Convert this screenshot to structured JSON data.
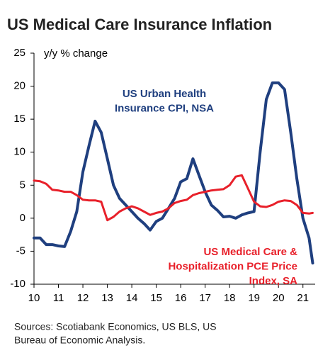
{
  "chart_data": {
    "type": "line",
    "title": "US Medical Care Insurance Inflation",
    "y_label": "y/y % change",
    "x": [
      10,
      10.25,
      10.5,
      10.75,
      11,
      11.25,
      11.5,
      11.75,
      12,
      12.25,
      12.5,
      12.75,
      13,
      13.25,
      13.5,
      13.75,
      14,
      14.25,
      14.5,
      14.75,
      15,
      15.25,
      15.5,
      15.75,
      16,
      16.25,
      16.5,
      16.75,
      17,
      17.25,
      17.5,
      17.75,
      18,
      18.25,
      18.5,
      18.75,
      19,
      19.25,
      19.5,
      19.75,
      20,
      20.25,
      20.5,
      20.75,
      21,
      21.25,
      21.4
    ],
    "series": [
      {
        "name": [
          "US Urban Health",
          "Insurance CPI, NSA"
        ],
        "color": "#1f3f7f",
        "values": [
          -3,
          -3,
          -4,
          -4,
          -4.2,
          -4.3,
          -2,
          1,
          7,
          11,
          14.7,
          13,
          9,
          5,
          3,
          2,
          1,
          0,
          -0.8,
          -1.8,
          -0.5,
          0,
          1.5,
          3,
          5.5,
          6,
          9,
          6.5,
          4,
          2,
          1.2,
          0.2,
          0.3,
          0,
          0.5,
          0.8,
          1,
          10,
          18,
          20.5,
          20.5,
          19.5,
          13,
          6,
          0,
          -3,
          -6.8
        ]
      },
      {
        "name": [
          "US Medical Care &",
          "Hospitalization PCE Price",
          "Index, SA"
        ],
        "color": "#e8202a",
        "values": [
          5.7,
          5.6,
          5.2,
          4.3,
          4.2,
          4,
          4,
          3.5,
          2.8,
          2.7,
          2.7,
          2.5,
          -0.3,
          0.2,
          1,
          1.5,
          1.8,
          1.5,
          1,
          0.5,
          0.8,
          1,
          1.5,
          2.3,
          2.6,
          2.8,
          3.5,
          3.8,
          4,
          4.2,
          4.3,
          4.4,
          5,
          6.3,
          6.5,
          4.5,
          2.5,
          1.8,
          1.7,
          2,
          2.5,
          2.7,
          2.6,
          2,
          0.8,
          0.7,
          0.8
        ]
      }
    ],
    "xlim": [
      10,
      21.5
    ],
    "xticks": [
      10,
      11,
      12,
      13,
      14,
      15,
      16,
      17,
      18,
      19,
      20,
      21
    ],
    "ylim": [
      -10,
      25
    ],
    "yticks": [
      -10,
      -5,
      0,
      5,
      10,
      15,
      20,
      25
    ],
    "source": [
      "Sources: Scotiabank Economics, US BLS, US",
      "Bureau of Economic Analysis."
    ]
  }
}
